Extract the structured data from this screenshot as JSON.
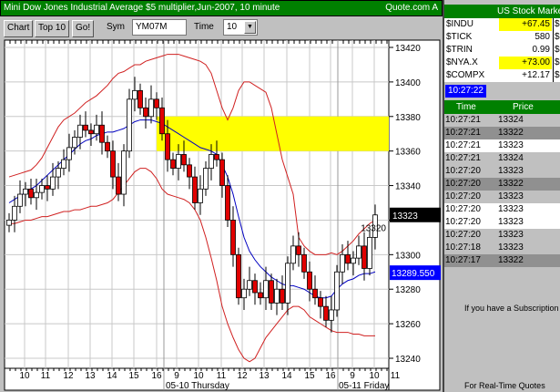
{
  "title": {
    "text": "Mini Dow Jones Industrial Average $5 multiplier,Jun-2007, 10 minute",
    "source": "Quote.com  A"
  },
  "toolbar": {
    "chart": "Chart",
    "top10": "Top 10",
    "go": "Go!",
    "sym_label": "Sym",
    "sym_value": "YM07M",
    "time_label": "Time",
    "time_value": "10"
  },
  "right": {
    "header": "US Stock Market",
    "indices": [
      {
        "name": "$INDU",
        "value": "+67.45",
        "highlight": true
      },
      {
        "name": "$TICK",
        "value": "580",
        "highlight": false
      },
      {
        "name": "$TRIN",
        "value": "0.99",
        "highlight": false
      },
      {
        "name": "$NYA.X",
        "value": "+73.00",
        "highlight": true
      },
      {
        "name": "$COMPX",
        "value": "+12.17",
        "highlight": false
      }
    ],
    "clock": "10:27:22",
    "table_headers": [
      "Time",
      "Price"
    ],
    "trades": [
      {
        "time": "10:27:21",
        "price": "13324",
        "shade": "light"
      },
      {
        "time": "10:27:21",
        "price": "13322",
        "shade": "dark"
      },
      {
        "time": "10:27:21",
        "price": "13323",
        "shade": "white"
      },
      {
        "time": "10:27:21",
        "price": "13324",
        "shade": "light"
      },
      {
        "time": "10:27:20",
        "price": "13323",
        "shade": "light"
      },
      {
        "time": "10:27:20",
        "price": "13322",
        "shade": "dark"
      },
      {
        "time": "10:27:20",
        "price": "13323",
        "shade": "light"
      },
      {
        "time": "10:27:20",
        "price": "13323",
        "shade": "white"
      },
      {
        "time": "10:27:20",
        "price": "13323",
        "shade": "white"
      },
      {
        "time": "10:27:20",
        "price": "13323",
        "shade": "light"
      },
      {
        "time": "10:27:18",
        "price": "13323",
        "shade": "light"
      },
      {
        "time": "10:27:17",
        "price": "13322",
        "shade": "dark"
      }
    ],
    "note1": "If you have a Subscription",
    "note2": "For Real-Time Quotes"
  },
  "colors": {
    "green": "#008000",
    "up": "#ffffff",
    "down": "#e00000",
    "ma": "#0000c0",
    "bands": "#d02020",
    "zone": "#ffff00",
    "last": "#000000",
    "ma_label": "#0000ff"
  },
  "chart_data": {
    "type": "candlestick",
    "ylim": [
      13230,
      13430
    ],
    "yticks": [
      13240,
      13260,
      13280,
      13300,
      13320,
      13340,
      13360,
      13380,
      13400,
      13420
    ],
    "xticks": [
      "10",
      "11",
      "12",
      "13",
      "14",
      "15",
      "16",
      "9",
      "10",
      "11",
      "12",
      "13",
      "14",
      "15",
      "16",
      "9",
      "10",
      "11"
    ],
    "day_labels": [
      "05-10 Thursday",
      "05-11 Friday"
    ],
    "close": [
      13320,
      13328,
      13335,
      13338,
      13333,
      13336,
      13340,
      13338,
      13345,
      13350,
      13355,
      13362,
      13368,
      13375,
      13372,
      13370,
      13375,
      13365,
      13360,
      13345,
      13335,
      13360,
      13390,
      13395,
      13385,
      13380,
      13390,
      13385,
      13370,
      13355,
      13350,
      13358,
      13352,
      13345,
      13330,
      13338,
      13350,
      13358,
      13355,
      13340,
      13320,
      13300,
      13275,
      13280,
      13285,
      13278,
      13275,
      13285,
      13272,
      13280,
      13272,
      13295,
      13305,
      13300,
      13290,
      13280,
      13275,
      13270,
      13262,
      13268,
      13290,
      13300,
      13295,
      13298,
      13305,
      13292,
      13310,
      13323
    ],
    "ma": [
      13330,
      13332,
      13334,
      13336,
      13338,
      13340,
      13343,
      13346,
      13349,
      13352,
      13355,
      13358,
      13361,
      13364,
      13366,
      13367,
      13369,
      13370,
      13371,
      13371,
      13372,
      13373,
      13375,
      13377,
      13378,
      13378,
      13378,
      13377,
      13376,
      13374,
      13372,
      13370,
      13368,
      13366,
      13364,
      13362,
      13361,
      13360,
      13358,
      13352,
      13345,
      13335,
      13322,
      13310,
      13302,
      13297,
      13293,
      13290,
      13287,
      13285,
      13283,
      13282,
      13282,
      13281,
      13280,
      13278,
      13276,
      13275,
      13275,
      13276,
      13280,
      13283,
      13285,
      13286,
      13288,
      13289,
      13289,
      13290
    ],
    "upper_band": [
      13345,
      13346,
      13347,
      13348,
      13349,
      13352,
      13356,
      13362,
      13368,
      13374,
      13378,
      13380,
      13382,
      13385,
      13388,
      13390,
      13392,
      13395,
      13398,
      13402,
      13405,
      13406,
      13408,
      13410,
      13410,
      13412,
      13413,
      13414,
      13415,
      13416,
      13416,
      13416,
      13415,
      13414,
      13413,
      13412,
      13410,
      13405,
      13395,
      13385,
      13378,
      13385,
      13395,
      13400,
      13400,
      13398,
      13396,
      13394,
      13385,
      13370,
      13355,
      13345,
      13335,
      13310,
      13305,
      13302,
      13300,
      13300,
      13300,
      13301,
      13300,
      13302,
      13305,
      13308,
      13312,
      13315,
      13318,
      13320
    ],
    "lower_band": [
      13318,
      13318,
      13319,
      13320,
      13320,
      13321,
      13322,
      13322,
      13323,
      13324,
      13325,
      13325,
      13326,
      13326,
      13327,
      13328,
      13328,
      13329,
      13330,
      13332,
      13336,
      13340,
      13344,
      13348,
      13350,
      13350,
      13348,
      13344,
      13338,
      13335,
      13334,
      13333,
      13332,
      13330,
      13326,
      13320,
      13310,
      13298,
      13285,
      13270,
      13260,
      13252,
      13245,
      13240,
      13238,
      13240,
      13246,
      13252,
      13256,
      13260,
      13264,
      13268,
      13270,
      13270,
      13268,
      13264,
      13262,
      13260,
      13258,
      13256,
      13255,
      13255,
      13255,
      13254,
      13254,
      13253,
      13253,
      13253
    ],
    "zone": [
      13360,
      13380
    ],
    "last_price": "13323",
    "ma_value": "13289.550"
  }
}
